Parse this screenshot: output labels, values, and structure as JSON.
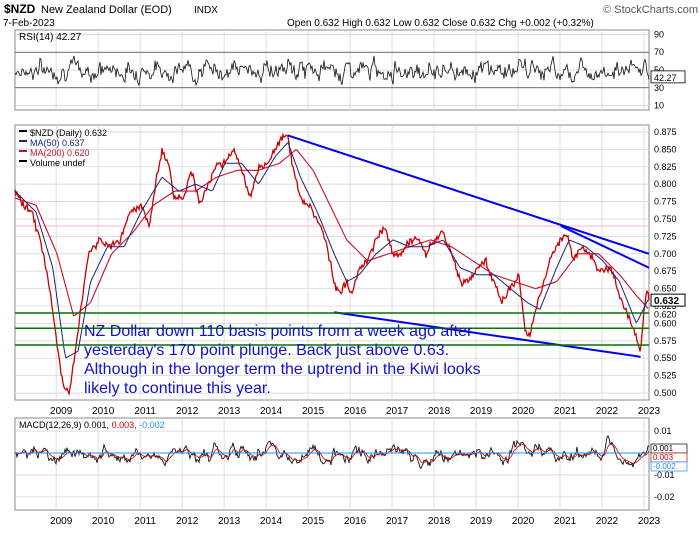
{
  "header": {
    "symbol": "$NZD",
    "name": "New Zealand Dollar (EOD)",
    "exchange": "INDX",
    "date": "7-Feb-2023",
    "quote": "Open 0.632  High 0.632  Low 0.632  Close 0.632  Chg +0.002 (+0.32%)",
    "watermark": "© StockCharts.com"
  },
  "colors": {
    "price": "#cc0000",
    "ma50": "#1a237e",
    "ma200": "#c8102e",
    "trendline": "#0000ee",
    "support": "#007700",
    "annotation": "#1111cc",
    "grid": "#d6d6d6",
    "pink_line": "#ffb6c1"
  },
  "chart_data": [
    {
      "type": "line",
      "panel": "rsi",
      "legend": "RSI(14) 42.27",
      "current": 42.27,
      "ylim": [
        5,
        95
      ],
      "ytick_labels": [
        "90",
        "70",
        "50",
        "30",
        "10"
      ],
      "bands": [
        30,
        70
      ]
    },
    {
      "type": "line",
      "panel": "price",
      "legend": [
        "$NZD (Daily) 0.632",
        "MA(50) 0.637",
        "MA(200) 0.620",
        "Volume undef"
      ],
      "ylim": [
        0.49,
        0.885
      ],
      "ytick_labels": [
        "0.875",
        "0.850",
        "0.825",
        "0.800",
        "0.775",
        "0.750",
        "0.725",
        "0.700",
        "0.675",
        "0.650",
        "0.625",
        "0.600",
        "0.575",
        "0.550",
        "0.525",
        "0.500"
      ],
      "xlabels": [
        "2009",
        "2010",
        "2011",
        "2012",
        "2013",
        "2014",
        "2015",
        "2016",
        "2017",
        "2018",
        "2019",
        "2020",
        "2021",
        "2022",
        "2023"
      ],
      "price_tag": "0.632",
      "ma200_tag": "0.620",
      "series": [
        {
          "name": "$NZD (Daily)",
          "x": [
            2008.0,
            2008.2,
            2008.4,
            2008.6,
            2008.8,
            2009.0,
            2009.15,
            2009.3,
            2009.5,
            2009.75,
            2010.0,
            2010.25,
            2010.5,
            2010.75,
            2011.0,
            2011.2,
            2011.35,
            2011.5,
            2011.65,
            2011.8,
            2012.0,
            2012.2,
            2012.4,
            2012.6,
            2012.8,
            2013.0,
            2013.2,
            2013.4,
            2013.6,
            2013.8,
            2014.0,
            2014.2,
            2014.4,
            2014.5,
            2014.6,
            2014.8,
            2015.0,
            2015.2,
            2015.4,
            2015.6,
            2015.75,
            2015.9,
            2016.0,
            2016.2,
            2016.4,
            2016.6,
            2016.8,
            2017.0,
            2017.2,
            2017.4,
            2017.6,
            2017.8,
            2018.0,
            2018.2,
            2018.4,
            2018.6,
            2018.8,
            2019.0,
            2019.2,
            2019.4,
            2019.6,
            2019.8,
            2020.0,
            2020.15,
            2020.25,
            2020.4,
            2020.6,
            2020.8,
            2021.0,
            2021.15,
            2021.3,
            2021.5,
            2021.7,
            2021.85,
            2022.0,
            2022.2,
            2022.4,
            2022.6,
            2022.8,
            2022.9,
            2023.0,
            2023.05,
            2023.1
          ],
          "values": [
            0.79,
            0.77,
            0.76,
            0.72,
            0.66,
            0.57,
            0.51,
            0.5,
            0.59,
            0.7,
            0.72,
            0.71,
            0.72,
            0.76,
            0.77,
            0.74,
            0.8,
            0.85,
            0.83,
            0.78,
            0.78,
            0.82,
            0.77,
            0.8,
            0.83,
            0.83,
            0.85,
            0.82,
            0.78,
            0.82,
            0.83,
            0.85,
            0.87,
            0.87,
            0.83,
            0.78,
            0.77,
            0.75,
            0.72,
            0.66,
            0.64,
            0.66,
            0.64,
            0.68,
            0.69,
            0.72,
            0.74,
            0.7,
            0.7,
            0.72,
            0.72,
            0.7,
            0.72,
            0.73,
            0.7,
            0.66,
            0.66,
            0.68,
            0.69,
            0.66,
            0.63,
            0.65,
            0.67,
            0.59,
            0.58,
            0.62,
            0.66,
            0.7,
            0.72,
            0.73,
            0.69,
            0.71,
            0.7,
            0.68,
            0.68,
            0.68,
            0.64,
            0.61,
            0.58,
            0.56,
            0.63,
            0.65,
            0.632
          ]
        },
        {
          "name": "MA(50)",
          "x": [
            2008.0,
            2008.5,
            2008.9,
            2009.2,
            2009.5,
            2009.8,
            2010.2,
            2010.6,
            2011.0,
            2011.5,
            2011.9,
            2012.3,
            2012.7,
            2013.0,
            2013.4,
            2013.8,
            2014.2,
            2014.5,
            2014.8,
            2015.2,
            2015.6,
            2015.9,
            2016.2,
            2016.6,
            2017.0,
            2017.4,
            2017.8,
            2018.2,
            2018.6,
            2019.0,
            2019.4,
            2019.8,
            2020.2,
            2020.5,
            2020.9,
            2021.2,
            2021.6,
            2022.0,
            2022.4,
            2022.8,
            2023.1
          ],
          "values": [
            0.79,
            0.76,
            0.68,
            0.55,
            0.56,
            0.66,
            0.71,
            0.71,
            0.76,
            0.81,
            0.79,
            0.8,
            0.79,
            0.83,
            0.83,
            0.8,
            0.84,
            0.86,
            0.81,
            0.76,
            0.7,
            0.66,
            0.67,
            0.7,
            0.72,
            0.71,
            0.71,
            0.72,
            0.68,
            0.67,
            0.67,
            0.65,
            0.63,
            0.62,
            0.68,
            0.72,
            0.71,
            0.69,
            0.66,
            0.6,
            0.637
          ]
        },
        {
          "name": "MA(200)",
          "x": [
            2008.0,
            2008.5,
            2009.0,
            2009.4,
            2009.8,
            2010.3,
            2010.8,
            2011.3,
            2011.8,
            2012.3,
            2012.8,
            2013.3,
            2013.8,
            2014.3,
            2014.7,
            2015.1,
            2015.5,
            2015.9,
            2016.4,
            2016.9,
            2017.4,
            2017.9,
            2018.4,
            2018.9,
            2019.4,
            2019.9,
            2020.4,
            2020.9,
            2021.4,
            2021.9,
            2022.4,
            2022.8,
            2023.1
          ],
          "values": [
            0.78,
            0.77,
            0.7,
            0.61,
            0.63,
            0.7,
            0.73,
            0.77,
            0.79,
            0.79,
            0.81,
            0.82,
            0.82,
            0.83,
            0.85,
            0.82,
            0.77,
            0.72,
            0.69,
            0.7,
            0.71,
            0.72,
            0.71,
            0.69,
            0.67,
            0.66,
            0.65,
            0.66,
            0.7,
            0.7,
            0.67,
            0.64,
            0.62
          ]
        }
      ],
      "trendlines": [
        {
          "x": [
            2014.5,
            2023.1
          ],
          "values": [
            0.87,
            0.7
          ]
        },
        {
          "x": [
            2021.0,
            2023.1
          ],
          "values": [
            0.74,
            0.68
          ]
        },
        {
          "x": [
            2015.6,
            2022.9
          ],
          "values": [
            0.616,
            0.552
          ]
        }
      ],
      "support_levels": [
        0.615,
        0.593,
        0.569
      ],
      "reference_level": 0.74,
      "annotation": [
        "NZ Dollar down 110 basis points from a week ago after",
        "yesterday's 170 point plunge. Back just above 0.63.",
        "Although in the longer term the uptrend in the Kiwi looks",
        "likely to continue this year."
      ]
    },
    {
      "type": "line",
      "panel": "macd",
      "legend_prefix": "MACD(12,26,9)",
      "legend_values": [
        "0.001,",
        "0.003,",
        "-0.002"
      ],
      "ylim": [
        -0.026,
        0.016
      ],
      "ytick_labels": [
        "0.01",
        "0.00",
        "-0.01",
        "-0.02"
      ],
      "value_tags": [
        "0.001",
        "0.003",
        "-0.002"
      ],
      "xlabels": [
        "2009",
        "2010",
        "2011",
        "2012",
        "2013",
        "2014",
        "2015",
        "2016",
        "2017",
        "2018",
        "2019",
        "2020",
        "2021",
        "2022",
        "2023"
      ]
    }
  ]
}
